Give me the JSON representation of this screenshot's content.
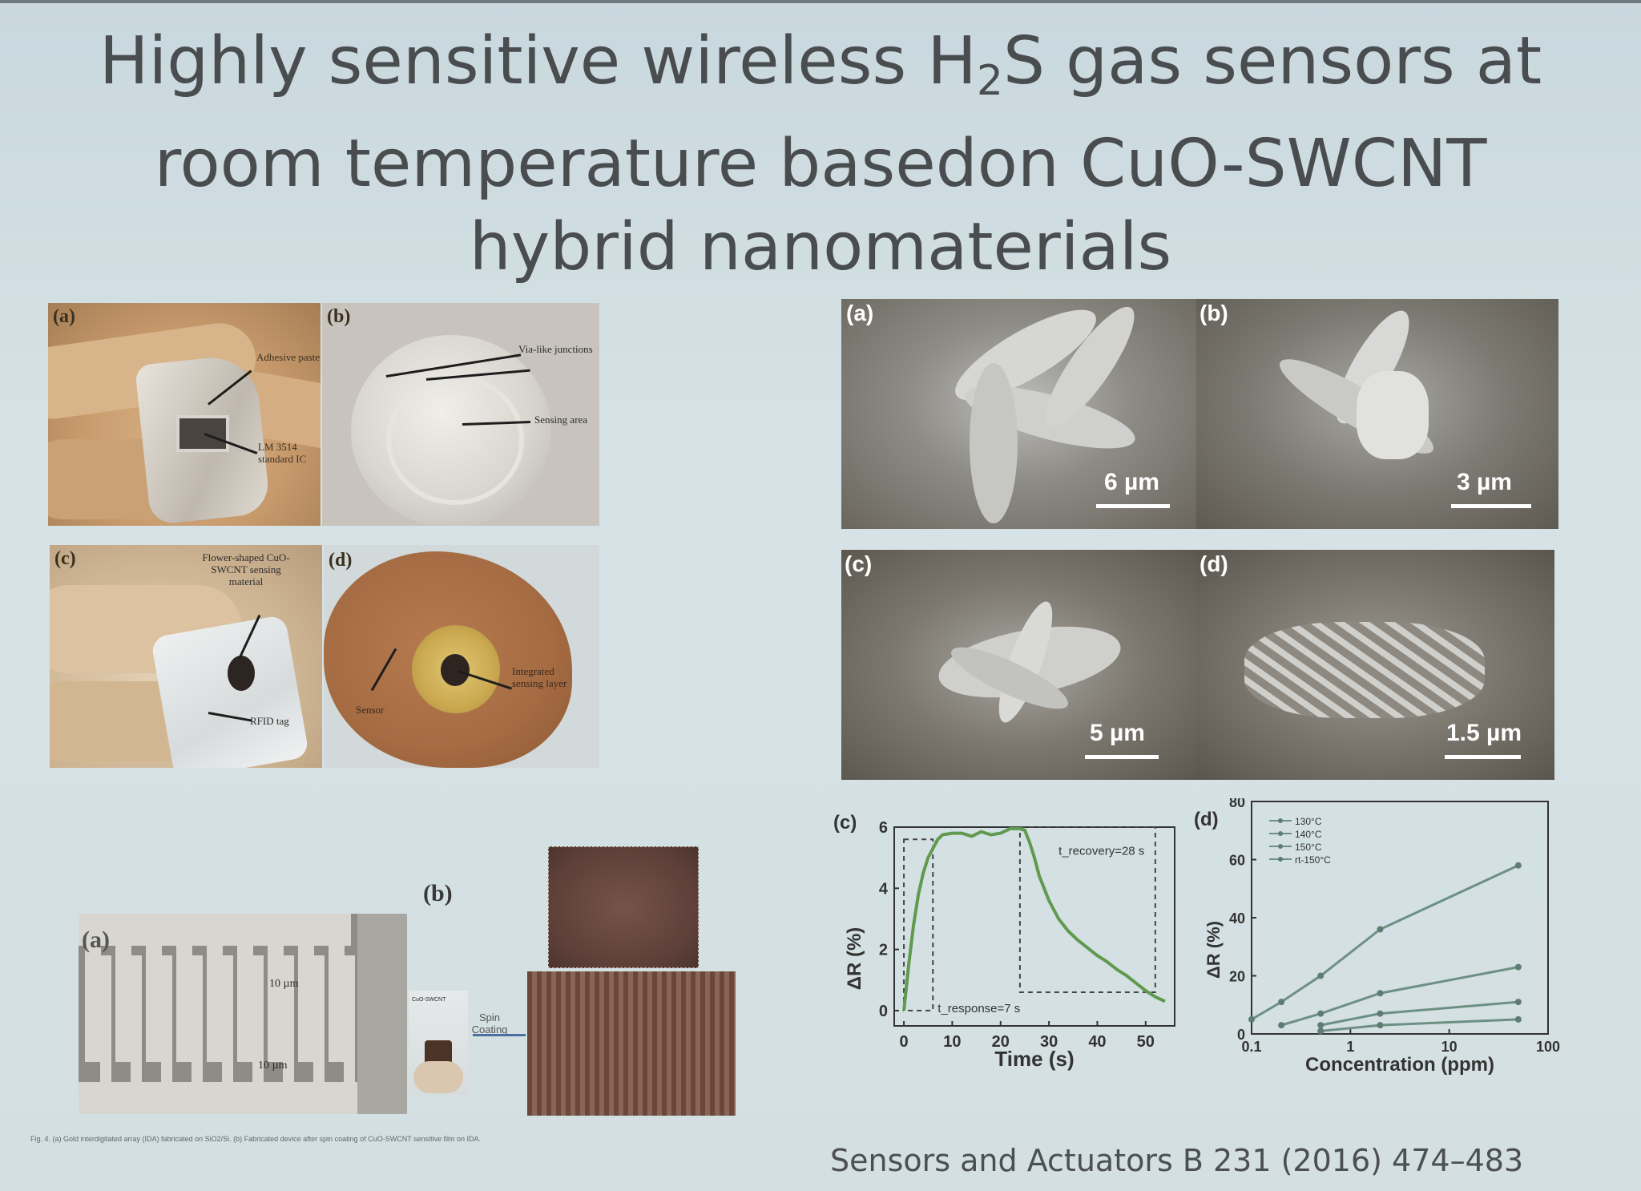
{
  "title": {
    "line1_a": "Highly sensitive wireless H",
    "line1_sub": "2",
    "line1_b": "S gas sensors at",
    "line2": "room temperature basedon CuO-SWCNT",
    "line3": "hybrid nanomaterials"
  },
  "photos": {
    "a": {
      "label": "(a)",
      "annotations": [
        "Adhesive paste",
        "LM 3514 standard IC"
      ]
    },
    "b": {
      "label": "(b)",
      "annotations": [
        "Via-like junctions",
        "Sensing area"
      ]
    },
    "c": {
      "label": "(c)",
      "annotations": [
        "Flower-shaped CuO-SWCNT sensing material",
        "RFID tag"
      ]
    },
    "d": {
      "label": "(d)",
      "annotations": [
        "Sensor",
        "Integrated sensing layer"
      ]
    }
  },
  "sem": {
    "a": {
      "label": "(a)",
      "scale": "6 µm"
    },
    "b": {
      "label": "(b)",
      "scale": "3 µm"
    },
    "c": {
      "label": "(c)",
      "scale": "5 µm"
    },
    "d": {
      "label": "(d)",
      "scale": "1.5 µm"
    }
  },
  "ida": {
    "a_label": "(a)",
    "b_label": "(b)",
    "dim_top": "10 µm",
    "dim_bottom": "10 µm",
    "chip_label": "CuO-SWCNT",
    "process_label_1": "Spin",
    "process_label_2": "Coating",
    "caption": "Fig. 4. (a) Gold interdigitated array (IDA) fabricated on SiO2/Si. (b) Fabricated device after spin coating of CuO-SWCNT sensitive film on IDA."
  },
  "citation": "Sensors and Actuators B 231 (2016) 474–483",
  "colors": {
    "curve": "#5f9a4e",
    "axis": "#333333",
    "dash": "#444444"
  },
  "chart_data": [
    {
      "type": "line",
      "label": "(c)",
      "xlabel": "Time (s)",
      "ylabel": "ΔR (%)",
      "xlim": [
        -2,
        56
      ],
      "ylim": [
        -0.5,
        6
      ],
      "xticks": [
        0,
        10,
        20,
        30,
        40,
        50
      ],
      "yticks": [
        0,
        2,
        4,
        6
      ],
      "annotations": {
        "response": "t_response=7 s",
        "recovery": "t_recovery=28 s"
      },
      "series": [
        {
          "x": [
            0,
            1,
            2,
            3,
            4,
            5,
            6,
            7,
            8,
            10,
            12,
            14,
            16,
            18,
            20,
            22,
            24,
            25,
            26,
            27,
            28,
            30,
            32,
            34,
            36,
            38,
            40,
            42,
            44,
            46,
            48,
            50,
            52,
            54
          ],
          "y": [
            0,
            1.5,
            2.8,
            3.8,
            4.5,
            5.0,
            5.3,
            5.6,
            5.75,
            5.8,
            5.8,
            5.7,
            5.85,
            5.75,
            5.8,
            5.95,
            5.95,
            5.9,
            5.5,
            5.0,
            4.4,
            3.6,
            3.0,
            2.6,
            2.3,
            2.05,
            1.8,
            1.6,
            1.35,
            1.15,
            0.9,
            0.65,
            0.45,
            0.3
          ]
        }
      ]
    },
    {
      "type": "line",
      "label": "(d)",
      "xlabel": "Concentration (ppm)",
      "ylabel": "ΔR (%)",
      "xscale": "log",
      "xlim": [
        0.1,
        100
      ],
      "ylim": [
        0,
        80
      ],
      "xticks": [
        "0.1",
        "1",
        "10",
        "100"
      ],
      "yticks": [
        0,
        20,
        40,
        60,
        80
      ],
      "legend_position": "top-left",
      "series": [
        {
          "name": "130°C",
          "x": [
            0.1,
            0.2,
            0.5,
            2,
            50
          ],
          "y": [
            5,
            11,
            20,
            36,
            58
          ]
        },
        {
          "name": "140°C",
          "x": [
            0.2,
            0.5,
            2,
            50
          ],
          "y": [
            3,
            7,
            14,
            23
          ]
        },
        {
          "name": "150°C",
          "x": [
            0.5,
            2,
            50
          ],
          "y": [
            3,
            7,
            11
          ]
        },
        {
          "name": "rt-150°C",
          "x": [
            0.5,
            2,
            50
          ],
          "y": [
            1,
            3,
            5
          ]
        }
      ]
    }
  ]
}
